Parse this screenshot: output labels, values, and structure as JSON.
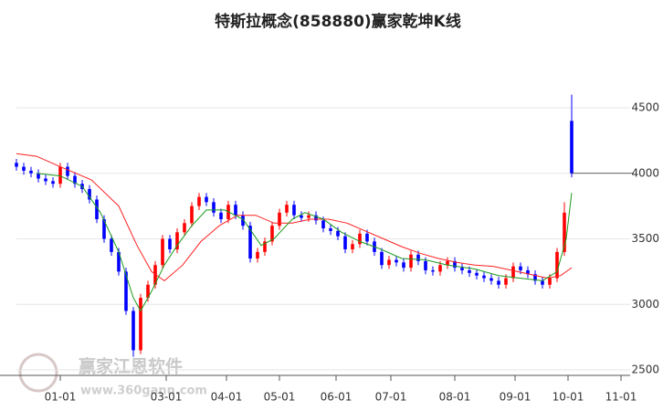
{
  "chart_data": {
    "type": "candlestick",
    "title": "特斯拉概念(858880)赢家乾坤K线",
    "watermark": "赢家江恩软件",
    "watermark_url": "www.360gann.com",
    "up_color": "#ff0000",
    "down_color": "#0000ff",
    "grid": true,
    "xlim": [
      0,
      336
    ],
    "xticks": [
      {
        "value": 24,
        "label": "01-01"
      },
      {
        "value": 82,
        "label": "03-01"
      },
      {
        "value": 115,
        "label": "04-01"
      },
      {
        "value": 144,
        "label": "05-01"
      },
      {
        "value": 175,
        "label": "06-01"
      },
      {
        "value": 205,
        "label": "07-01"
      },
      {
        "value": 240,
        "label": "08-01"
      },
      {
        "value": 273,
        "label": "09-01"
      },
      {
        "value": 302,
        "label": "10-01"
      },
      {
        "value": 331,
        "label": "11-01"
      }
    ],
    "ylim": [
      2500,
      4650
    ],
    "yticks": [
      2500,
      3000,
      3500,
      4000,
      4500
    ],
    "x": [
      0,
      4,
      8,
      12,
      16,
      20,
      24,
      28,
      32,
      36,
      40,
      44,
      48,
      52,
      56,
      60,
      64,
      68,
      72,
      76,
      80,
      84,
      88,
      92,
      96,
      100,
      104,
      108,
      112,
      116,
      120,
      124,
      128,
      132,
      136,
      140,
      144,
      148,
      152,
      156,
      160,
      164,
      168,
      172,
      176,
      180,
      184,
      188,
      192,
      196,
      200,
      204,
      208,
      212,
      216,
      220,
      224,
      228,
      232,
      236,
      240,
      244,
      248,
      252,
      256,
      260,
      264,
      268,
      272,
      276,
      280,
      284,
      288,
      292,
      296,
      300,
      304
    ],
    "open": [
      4080,
      4050,
      4020,
      4000,
      3960,
      3940,
      3920,
      4050,
      3980,
      3920,
      3880,
      3800,
      3650,
      3500,
      3400,
      3250,
      2950,
      2650,
      3050,
      3150,
      3300,
      3500,
      3420,
      3550,
      3620,
      3750,
      3820,
      3780,
      3700,
      3650,
      3760,
      3680,
      3600,
      3350,
      3400,
      3480,
      3600,
      3700,
      3760,
      3680,
      3660,
      3680,
      3640,
      3580,
      3560,
      3520,
      3420,
      3460,
      3540,
      3480,
      3400,
      3300,
      3340,
      3320,
      3280,
      3380,
      3330,
      3260,
      3250,
      3300,
      3330,
      3280,
      3260,
      3240,
      3220,
      3200,
      3180,
      3150,
      3200,
      3290,
      3260,
      3230,
      3180,
      3150,
      3200,
      3400,
      4400
    ],
    "high": [
      4110,
      4080,
      4050,
      4030,
      3990,
      3970,
      4080,
      4080,
      4010,
      3950,
      3910,
      3830,
      3680,
      3530,
      3430,
      3280,
      2980,
      3080,
      3180,
      3330,
      3530,
      3530,
      3580,
      3650,
      3780,
      3850,
      3850,
      3810,
      3730,
      3790,
      3790,
      3710,
      3630,
      3430,
      3510,
      3630,
      3730,
      3790,
      3790,
      3710,
      3710,
      3710,
      3670,
      3610,
      3590,
      3550,
      3490,
      3570,
      3570,
      3510,
      3430,
      3370,
      3370,
      3350,
      3410,
      3410,
      3360,
      3290,
      3330,
      3360,
      3360,
      3310,
      3290,
      3270,
      3250,
      3230,
      3210,
      3230,
      3320,
      3320,
      3290,
      3260,
      3210,
      3230,
      3430,
      3780,
      4600
    ],
    "low": [
      4020,
      3990,
      3970,
      3930,
      3910,
      3890,
      3890,
      3950,
      3890,
      3850,
      3770,
      3620,
      3470,
      3370,
      3220,
      2920,
      2600,
      2620,
      3020,
      3120,
      3270,
      3390,
      3390,
      3520,
      3590,
      3720,
      3750,
      3670,
      3620,
      3620,
      3650,
      3570,
      3320,
      3320,
      3370,
      3450,
      3570,
      3670,
      3650,
      3630,
      3630,
      3610,
      3550,
      3530,
      3490,
      3390,
      3390,
      3430,
      3450,
      3370,
      3270,
      3270,
      3290,
      3250,
      3250,
      3300,
      3230,
      3220,
      3220,
      3270,
      3250,
      3230,
      3210,
      3190,
      3170,
      3150,
      3120,
      3120,
      3170,
      3230,
      3200,
      3150,
      3120,
      3120,
      3170,
      3370,
      3970
    ],
    "close": [
      4050,
      4020,
      4000,
      3960,
      3940,
      3920,
      4050,
      3980,
      3920,
      3880,
      3800,
      3650,
      3500,
      3400,
      3250,
      2950,
      2650,
      3050,
      3150,
      3300,
      3500,
      3420,
      3550,
      3620,
      3750,
      3820,
      3780,
      3700,
      3650,
      3760,
      3680,
      3600,
      3350,
      3400,
      3480,
      3600,
      3700,
      3760,
      3680,
      3660,
      3680,
      3640,
      3580,
      3560,
      3520,
      3420,
      3460,
      3540,
      3480,
      3400,
      3300,
      3340,
      3320,
      3280,
      3380,
      3330,
      3260,
      3250,
      3300,
      3330,
      3280,
      3260,
      3240,
      3220,
      3200,
      3180,
      3150,
      3200,
      3290,
      3260,
      3230,
      3180,
      3150,
      3200,
      3400,
      3700,
      4000
    ],
    "lines": [
      {
        "color": "#ff2020",
        "x": [
          0,
          11,
          24,
          41,
          56,
          66,
          74,
          81,
          91,
          101,
          111,
          121,
          131,
          141,
          151,
          161,
          171,
          181,
          191,
          201,
          211,
          221,
          231,
          241,
          251,
          261,
          271,
          281,
          291,
          298,
          304
        ],
        "values": [
          4150,
          4130,
          4050,
          3950,
          3750,
          3450,
          3250,
          3180,
          3300,
          3480,
          3600,
          3680,
          3680,
          3620,
          3620,
          3650,
          3650,
          3620,
          3560,
          3500,
          3440,
          3390,
          3350,
          3320,
          3300,
          3290,
          3260,
          3230,
          3200,
          3220,
          3280
        ]
      },
      {
        "color": "#1a9a1a",
        "x": [
          11,
          24,
          36,
          46,
          56,
          64,
          68,
          74,
          81,
          88,
          96,
          104,
          114,
          124,
          134,
          141,
          151,
          158,
          168,
          178,
          188,
          198,
          211,
          224,
          236,
          251,
          264,
          276,
          288,
          296,
          301,
          304
        ],
        "values": [
          4000,
          3980,
          3900,
          3700,
          3400,
          3050,
          2950,
          3100,
          3300,
          3450,
          3600,
          3720,
          3720,
          3650,
          3450,
          3500,
          3650,
          3700,
          3650,
          3550,
          3480,
          3430,
          3350,
          3340,
          3300,
          3270,
          3220,
          3200,
          3180,
          3250,
          3500,
          3850
        ]
      }
    ]
  }
}
